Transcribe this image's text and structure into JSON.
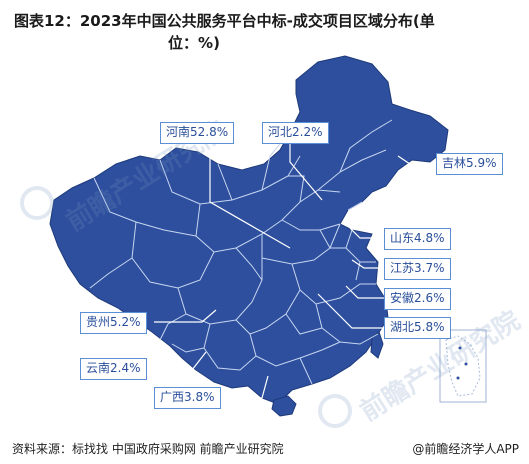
{
  "title": {
    "line1": "图表12：2023年中国公共服务平台中标-成交项目区域分布(单",
    "line2": "位：%)"
  },
  "regions": [
    {
      "name": "河南",
      "value": "52.8%"
    },
    {
      "name": "河北",
      "value": "2.2%"
    },
    {
      "name": "吉林",
      "value": "5.9%"
    },
    {
      "name": "山东",
      "value": "4.8%"
    },
    {
      "name": "江苏",
      "value": "3.7%"
    },
    {
      "name": "安徽",
      "value": "2.6%"
    },
    {
      "name": "湖北",
      "value": "5.8%"
    },
    {
      "name": "贵州",
      "value": "5.2%"
    },
    {
      "name": "云南",
      "value": "2.4%"
    },
    {
      "name": "广西",
      "value": "3.8%"
    }
  ],
  "watermark": {
    "text1": "前瞻产业研究院",
    "text2": "前瞻产业研究院"
  },
  "footer": {
    "source": "资料来源：标找找 中国政府采购网 前瞻产业研究院",
    "brand": "@前瞻经济学人APP"
  },
  "colors": {
    "map_fill": "#2d4f9e",
    "border": "#c7d6f0",
    "label_border": "#5a8fd6",
    "label_text": "#2a4f9a"
  }
}
